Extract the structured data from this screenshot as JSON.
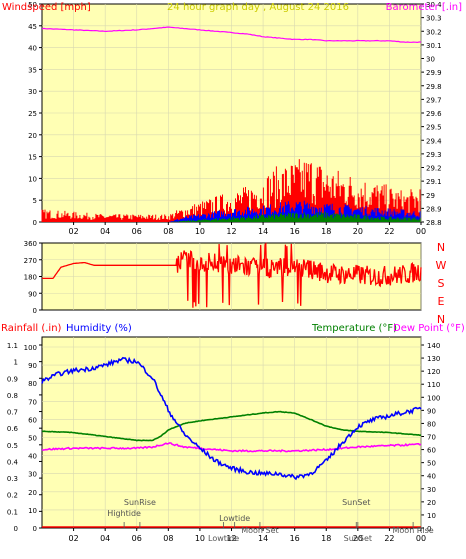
{
  "colors": {
    "panel_bg": "#ffffb4",
    "grid": "#d8d8b0",
    "axis": "#000000",
    "wind": "#ff0000",
    "gust_blue": "#0000ff",
    "gust_green": "#008000",
    "barometer": "#ff00ff",
    "direction": "#ff0000",
    "humidity": "#0000ff",
    "temperature": "#008000",
    "dewpoint": "#ff00ff",
    "rainfall": "#ff0000",
    "title": "#cccc00",
    "annot": "#555555"
  },
  "chart_data": [
    {
      "id": "wind-baro",
      "type": "line",
      "title": "24 hour graph day , August 24 2016",
      "ylabel_left": "Windspeed [mph]",
      "ylabel_right": "Barometer [.in]",
      "x_ticks": [
        "02",
        "04",
        "06",
        "08",
        "10",
        "12",
        "14",
        "16",
        "18",
        "20",
        "22",
        "00"
      ],
      "y_left_ticks": [
        "0",
        "5",
        "10",
        "15",
        "20",
        "25",
        "30",
        "35",
        "40",
        "45",
        "50"
      ],
      "y_left_range": [
        0,
        50
      ],
      "y_right_ticks": [
        "28.8",
        "28.9",
        "29",
        "29.1",
        "29.2",
        "29.3",
        "29.4",
        "29.5",
        "29.6",
        "29.7",
        "29.8",
        "29.9",
        "30",
        "30.1",
        "30.2",
        "30.3",
        "30.4"
      ],
      "y_right_range": [
        28.8,
        30.4
      ],
      "grid": true,
      "series": [
        {
          "role": "barometer",
          "color_key": "barometer",
          "hours": [
            0,
            2,
            4,
            6,
            7,
            8,
            9,
            10,
            11,
            12,
            13,
            14,
            15,
            16,
            17,
            18,
            19,
            20,
            21,
            22,
            23,
            24
          ],
          "values": [
            30.22,
            30.21,
            30.2,
            30.21,
            30.22,
            30.23,
            30.22,
            30.21,
            30.2,
            30.19,
            30.18,
            30.16,
            30.15,
            30.14,
            30.14,
            30.13,
            30.13,
            30.13,
            30.13,
            30.13,
            30.12,
            30.12
          ]
        },
        {
          "role": "wind-max",
          "color_key": "wind",
          "hours": [
            0,
            2,
            4,
            6,
            8,
            9,
            10,
            11,
            12,
            13,
            14,
            15,
            16,
            17,
            18,
            19,
            20,
            21,
            22,
            23,
            24
          ],
          "values": [
            2.5,
            2,
            1.5,
            1.5,
            1.5,
            3,
            4,
            5,
            6,
            7,
            9,
            11,
            12,
            13,
            11,
            10,
            9,
            8,
            7,
            6,
            7
          ]
        },
        {
          "role": "wind-avg",
          "color_key": "gust_blue",
          "hours": [
            0,
            8,
            9,
            10,
            12,
            14,
            16,
            18,
            20,
            22,
            24
          ],
          "values": [
            0,
            0,
            1,
            1.5,
            2.5,
            3,
            4,
            3.5,
            3,
            2.5,
            2
          ]
        },
        {
          "role": "wind-min",
          "color_key": "gust_green",
          "hours": [
            0,
            8,
            10,
            12,
            14,
            16,
            18,
            20,
            22,
            24
          ],
          "values": [
            0,
            0,
            0.5,
            1,
            1.5,
            2,
            2,
            1.5,
            1,
            1
          ]
        }
      ]
    },
    {
      "id": "direction",
      "type": "line",
      "y_left_ticks": [
        "0",
        "90",
        "180",
        "270",
        "360"
      ],
      "y_left_range": [
        0,
        360
      ],
      "y_right_labels": [
        "N",
        "W",
        "S",
        "E",
        "N"
      ],
      "series": [
        {
          "role": "wind-direction",
          "color_key": "direction",
          "hours": [
            0,
            0.7,
            1.2,
            2,
            2.7,
            3.3,
            4,
            6,
            7,
            8,
            8.5,
            9,
            10,
            11,
            12,
            13,
            14,
            15,
            16,
            17,
            18,
            19,
            20,
            21,
            22,
            23,
            24
          ],
          "values": [
            170,
            170,
            230,
            250,
            255,
            240,
            240,
            240,
            240,
            240,
            240,
            270,
            250,
            260,
            240,
            230,
            220,
            230,
            230,
            220,
            200,
            190,
            190,
            180,
            185,
            190,
            210
          ]
        }
      ]
    },
    {
      "id": "temp-hum-rain",
      "type": "line",
      "ylabel_left_rain": "Rainfall (.in)",
      "ylabel_left_hum": "Humidity (%)",
      "ylabel_right_temp": "Temperature (°F)",
      "ylabel_right_dew": "Dew Point (°F)",
      "y_rain_ticks": [
        "0",
        "0.1",
        "0.2",
        "0.3",
        "0.4",
        "0.5",
        "0.6",
        "0.7",
        "0.8",
        "0.9",
        "1",
        "1.1"
      ],
      "y_rain_range": [
        0,
        1.1
      ],
      "y_hum_ticks": [
        "0",
        "10",
        "20",
        "30",
        "40",
        "50",
        "60",
        "70",
        "80",
        "90",
        "100"
      ],
      "y_hum_range": [
        0,
        100
      ],
      "y_temp_ticks": [
        "0",
        "10",
        "20",
        "30",
        "40",
        "50",
        "60",
        "70",
        "80",
        "90",
        "100",
        "110",
        "120",
        "130",
        "140"
      ],
      "y_temp_range": [
        0,
        140
      ],
      "series": [
        {
          "role": "humidity",
          "color_key": "humidity",
          "hours": [
            0,
            1,
            2,
            3,
            4,
            5,
            6,
            7,
            8,
            9,
            10,
            11,
            12,
            13,
            14,
            15,
            16,
            17,
            18,
            19,
            20,
            21,
            22,
            23,
            24
          ],
          "values": [
            81,
            85,
            87,
            88,
            90,
            93,
            92,
            83,
            65,
            52,
            44,
            37,
            33,
            31,
            30,
            30,
            28,
            30,
            37,
            47,
            56,
            60,
            62,
            64,
            66
          ]
        },
        {
          "role": "temperature",
          "color_key": "temperature",
          "hours": [
            0,
            2,
            4,
            6,
            7,
            7.5,
            8,
            9,
            10,
            12,
            14,
            15,
            16,
            17,
            18,
            19,
            20,
            22,
            24
          ],
          "values": [
            74,
            73,
            70,
            67,
            67,
            70,
            75,
            80,
            82,
            85,
            88,
            89,
            88,
            83,
            78,
            75,
            74,
            73,
            71
          ]
        },
        {
          "role": "dewpoint",
          "color_key": "dewpoint",
          "hours": [
            0,
            2,
            4,
            6,
            7,
            8,
            9,
            10,
            12,
            14,
            16,
            18,
            20,
            22,
            24
          ],
          "values": [
            60,
            61,
            61,
            61,
            62,
            65,
            62,
            61,
            59,
            59,
            59,
            60,
            62,
            63,
            64
          ]
        },
        {
          "role": "rainfall",
          "color_key": "rainfall",
          "hours": [
            0,
            24
          ],
          "values": [
            0,
            0
          ]
        }
      ],
      "annotations": [
        {
          "text": "SunRise",
          "hour": 6.2,
          "row": 0
        },
        {
          "text": "Hightide",
          "hour": 5.2,
          "row": 1
        },
        {
          "text": "Lowtide",
          "hour": 12.2,
          "row": 2
        },
        {
          "text": "Moon Set",
          "hour": 13.8,
          "row": 3
        },
        {
          "text": "Lowtide",
          "hour": 11.5,
          "row": 4
        },
        {
          "text": "SunSet",
          "hour": 19.9,
          "row": 0
        },
        {
          "text": "SunSet",
          "hour": 20.0,
          "row": 4
        },
        {
          "text": "Moon Rise",
          "hour": 23.5,
          "row": 3
        }
      ]
    }
  ]
}
